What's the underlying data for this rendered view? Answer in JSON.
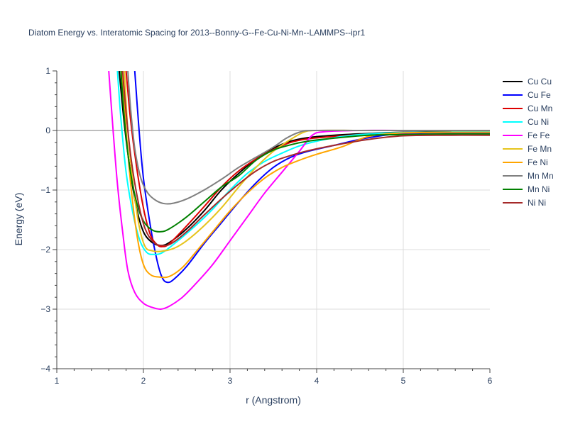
{
  "chart_data": {
    "type": "line",
    "title": "Diatom Energy vs. Interatomic Spacing for 2013--Bonny-G--Fe-Cu-Ni-Mn--LAMMPS--ipr1",
    "xlabel": "r (Angstrom)",
    "ylabel": "Energy (eV)",
    "xlim": [
      1,
      6
    ],
    "ylim": [
      -4,
      1
    ],
    "xticks": [
      "1",
      "2",
      "3",
      "4",
      "5",
      "6"
    ],
    "yticks": [
      "1",
      "0",
      "−1",
      "−2",
      "−3",
      "−4"
    ],
    "grid": true,
    "legend_position": "top-right",
    "series": [
      {
        "name": "Cu Cu",
        "color": "#000000",
        "points": [
          [
            1.72,
            1.0
          ],
          [
            1.78,
            0.1
          ],
          [
            1.85,
            -0.7
          ],
          [
            1.92,
            -1.3
          ],
          [
            2.0,
            -1.7
          ],
          [
            2.1,
            -1.88
          ],
          [
            2.2,
            -1.93
          ],
          [
            2.3,
            -1.88
          ],
          [
            2.5,
            -1.65
          ],
          [
            2.7,
            -1.35
          ],
          [
            2.9,
            -1.0
          ],
          [
            3.1,
            -0.72
          ],
          [
            3.3,
            -0.48
          ],
          [
            3.5,
            -0.3
          ],
          [
            3.7,
            -0.18
          ],
          [
            3.9,
            -0.12
          ],
          [
            4.2,
            -0.08
          ],
          [
            4.6,
            -0.05
          ],
          [
            5.0,
            -0.03
          ],
          [
            5.5,
            -0.02
          ],
          [
            6.0,
            -0.02
          ]
        ]
      },
      {
        "name": "Cu Fe",
        "color": "#0000ff",
        "points": [
          [
            1.9,
            1.0
          ],
          [
            1.95,
            0.0
          ],
          [
            2.0,
            -0.8
          ],
          [
            2.08,
            -1.6
          ],
          [
            2.16,
            -2.2
          ],
          [
            2.22,
            -2.48
          ],
          [
            2.28,
            -2.55
          ],
          [
            2.35,
            -2.5
          ],
          [
            2.5,
            -2.28
          ],
          [
            2.7,
            -1.9
          ],
          [
            2.9,
            -1.55
          ],
          [
            3.1,
            -1.2
          ],
          [
            3.3,
            -0.88
          ],
          [
            3.5,
            -0.62
          ],
          [
            3.7,
            -0.45
          ],
          [
            3.9,
            -0.35
          ],
          [
            4.2,
            -0.25
          ],
          [
            4.6,
            -0.12
          ],
          [
            5.0,
            -0.05
          ],
          [
            5.5,
            -0.04
          ],
          [
            6.0,
            -0.04
          ]
        ]
      },
      {
        "name": "Cu Mn",
        "color": "#dd0000",
        "points": [
          [
            1.8,
            1.0
          ],
          [
            1.85,
            0.2
          ],
          [
            1.92,
            -0.6
          ],
          [
            2.0,
            -1.3
          ],
          [
            2.08,
            -1.75
          ],
          [
            2.16,
            -1.92
          ],
          [
            2.22,
            -1.95
          ],
          [
            2.3,
            -1.9
          ],
          [
            2.5,
            -1.6
          ],
          [
            2.7,
            -1.28
          ],
          [
            2.9,
            -0.95
          ],
          [
            3.1,
            -0.68
          ],
          [
            3.3,
            -0.48
          ],
          [
            3.5,
            -0.32
          ],
          [
            3.7,
            -0.2
          ],
          [
            3.9,
            -0.14
          ],
          [
            4.2,
            -0.1
          ],
          [
            4.6,
            -0.06
          ],
          [
            5.0,
            -0.04
          ],
          [
            5.5,
            -0.03
          ],
          [
            6.0,
            -0.03
          ]
        ]
      },
      {
        "name": "Cu Ni",
        "color": "#00ffff",
        "points": [
          [
            1.7,
            1.0
          ],
          [
            1.74,
            0.2
          ],
          [
            1.8,
            -0.7
          ],
          [
            1.88,
            -1.4
          ],
          [
            1.96,
            -1.85
          ],
          [
            2.04,
            -2.05
          ],
          [
            2.12,
            -2.08
          ],
          [
            2.22,
            -2.05
          ],
          [
            2.4,
            -1.85
          ],
          [
            2.6,
            -1.6
          ],
          [
            2.8,
            -1.32
          ],
          [
            3.0,
            -1.0
          ],
          [
            3.2,
            -0.72
          ],
          [
            3.4,
            -0.52
          ],
          [
            3.6,
            -0.38
          ],
          [
            3.8,
            -0.26
          ],
          [
            4.0,
            -0.18
          ],
          [
            4.3,
            -0.1
          ],
          [
            4.7,
            -0.05
          ],
          [
            5.2,
            -0.03
          ],
          [
            6.0,
            -0.02
          ]
        ]
      },
      {
        "name": "Fe Fe",
        "color": "#ff00ff",
        "points": [
          [
            1.6,
            1.0
          ],
          [
            1.65,
            0.0
          ],
          [
            1.7,
            -0.9
          ],
          [
            1.76,
            -1.7
          ],
          [
            1.82,
            -2.35
          ],
          [
            1.9,
            -2.72
          ],
          [
            2.0,
            -2.9
          ],
          [
            2.1,
            -2.97
          ],
          [
            2.2,
            -3.0
          ],
          [
            2.3,
            -2.95
          ],
          [
            2.45,
            -2.8
          ],
          [
            2.6,
            -2.58
          ],
          [
            2.8,
            -2.25
          ],
          [
            3.0,
            -1.85
          ],
          [
            3.2,
            -1.45
          ],
          [
            3.4,
            -1.05
          ],
          [
            3.6,
            -0.7
          ],
          [
            3.8,
            -0.35
          ],
          [
            3.95,
            -0.08
          ],
          [
            4.1,
            -0.02
          ],
          [
            4.5,
            0.0
          ],
          [
            5.0,
            0.0
          ],
          [
            6.0,
            0.0
          ]
        ]
      },
      {
        "name": "Fe Mn",
        "color": "#e6c41c",
        "points": [
          [
            1.78,
            1.0
          ],
          [
            1.82,
            0.0
          ],
          [
            1.88,
            -0.9
          ],
          [
            1.95,
            -1.6
          ],
          [
            2.02,
            -1.95
          ],
          [
            2.1,
            -2.02
          ],
          [
            2.2,
            -2.03
          ],
          [
            2.35,
            -1.98
          ],
          [
            2.5,
            -1.85
          ],
          [
            2.7,
            -1.6
          ],
          [
            2.9,
            -1.3
          ],
          [
            3.1,
            -0.95
          ],
          [
            3.3,
            -0.62
          ],
          [
            3.5,
            -0.35
          ],
          [
            3.7,
            -0.15
          ],
          [
            3.85,
            -0.03
          ],
          [
            4.0,
            0.0
          ],
          [
            4.5,
            0.0
          ],
          [
            5.0,
            0.0
          ],
          [
            6.0,
            0.0
          ]
        ]
      },
      {
        "name": "Fe Ni",
        "color": "#ffa500",
        "points": [
          [
            1.75,
            1.0
          ],
          [
            1.8,
            0.0
          ],
          [
            1.86,
            -1.0
          ],
          [
            1.93,
            -1.8
          ],
          [
            2.0,
            -2.25
          ],
          [
            2.08,
            -2.42
          ],
          [
            2.18,
            -2.46
          ],
          [
            2.3,
            -2.45
          ],
          [
            2.45,
            -2.3
          ],
          [
            2.6,
            -2.05
          ],
          [
            2.8,
            -1.7
          ],
          [
            3.0,
            -1.35
          ],
          [
            3.2,
            -1.05
          ],
          [
            3.4,
            -0.8
          ],
          [
            3.6,
            -0.62
          ],
          [
            3.8,
            -0.5
          ],
          [
            4.0,
            -0.4
          ],
          [
            4.3,
            -0.27
          ],
          [
            4.6,
            -0.1
          ],
          [
            5.0,
            -0.04
          ],
          [
            5.5,
            -0.03
          ],
          [
            6.0,
            -0.03
          ]
        ]
      },
      {
        "name": "Mn Mn",
        "color": "#808080",
        "points": [
          [
            1.82,
            1.0
          ],
          [
            1.85,
            0.4
          ],
          [
            1.9,
            -0.3
          ],
          [
            1.97,
            -0.8
          ],
          [
            2.05,
            -1.05
          ],
          [
            2.15,
            -1.18
          ],
          [
            2.25,
            -1.23
          ],
          [
            2.35,
            -1.22
          ],
          [
            2.5,
            -1.15
          ],
          [
            2.7,
            -1.0
          ],
          [
            2.9,
            -0.82
          ],
          [
            3.1,
            -0.62
          ],
          [
            3.3,
            -0.45
          ],
          [
            3.5,
            -0.28
          ],
          [
            3.65,
            -0.13
          ],
          [
            3.8,
            -0.03
          ],
          [
            3.95,
            0.0
          ],
          [
            4.5,
            0.0
          ],
          [
            5.0,
            0.0
          ],
          [
            6.0,
            0.0
          ]
        ]
      },
      {
        "name": "Mn Ni",
        "color": "#008000",
        "points": [
          [
            1.74,
            1.0
          ],
          [
            1.78,
            0.2
          ],
          [
            1.84,
            -0.6
          ],
          [
            1.92,
            -1.2
          ],
          [
            2.0,
            -1.52
          ],
          [
            2.1,
            -1.67
          ],
          [
            2.2,
            -1.7
          ],
          [
            2.3,
            -1.65
          ],
          [
            2.5,
            -1.45
          ],
          [
            2.7,
            -1.2
          ],
          [
            2.9,
            -0.95
          ],
          [
            3.1,
            -0.76
          ],
          [
            3.3,
            -0.5
          ],
          [
            3.5,
            -0.33
          ],
          [
            3.7,
            -0.24
          ],
          [
            3.9,
            -0.18
          ],
          [
            4.2,
            -0.13
          ],
          [
            4.6,
            -0.08
          ],
          [
            5.0,
            -0.07
          ],
          [
            5.5,
            -0.06
          ],
          [
            6.0,
            -0.06
          ]
        ]
      },
      {
        "name": "Ni Ni",
        "color": "#a52a2a",
        "points": [
          [
            1.76,
            1.0
          ],
          [
            1.8,
            0.3
          ],
          [
            1.86,
            -0.5
          ],
          [
            1.94,
            -1.2
          ],
          [
            2.02,
            -1.65
          ],
          [
            2.12,
            -1.88
          ],
          [
            2.22,
            -1.93
          ],
          [
            2.32,
            -1.9
          ],
          [
            2.5,
            -1.7
          ],
          [
            2.7,
            -1.42
          ],
          [
            2.9,
            -1.15
          ],
          [
            3.1,
            -0.9
          ],
          [
            3.3,
            -0.68
          ],
          [
            3.5,
            -0.52
          ],
          [
            3.7,
            -0.42
          ],
          [
            3.9,
            -0.34
          ],
          [
            4.2,
            -0.25
          ],
          [
            4.6,
            -0.15
          ],
          [
            5.0,
            -0.09
          ],
          [
            5.5,
            -0.08
          ],
          [
            6.0,
            -0.08
          ]
        ]
      }
    ]
  }
}
